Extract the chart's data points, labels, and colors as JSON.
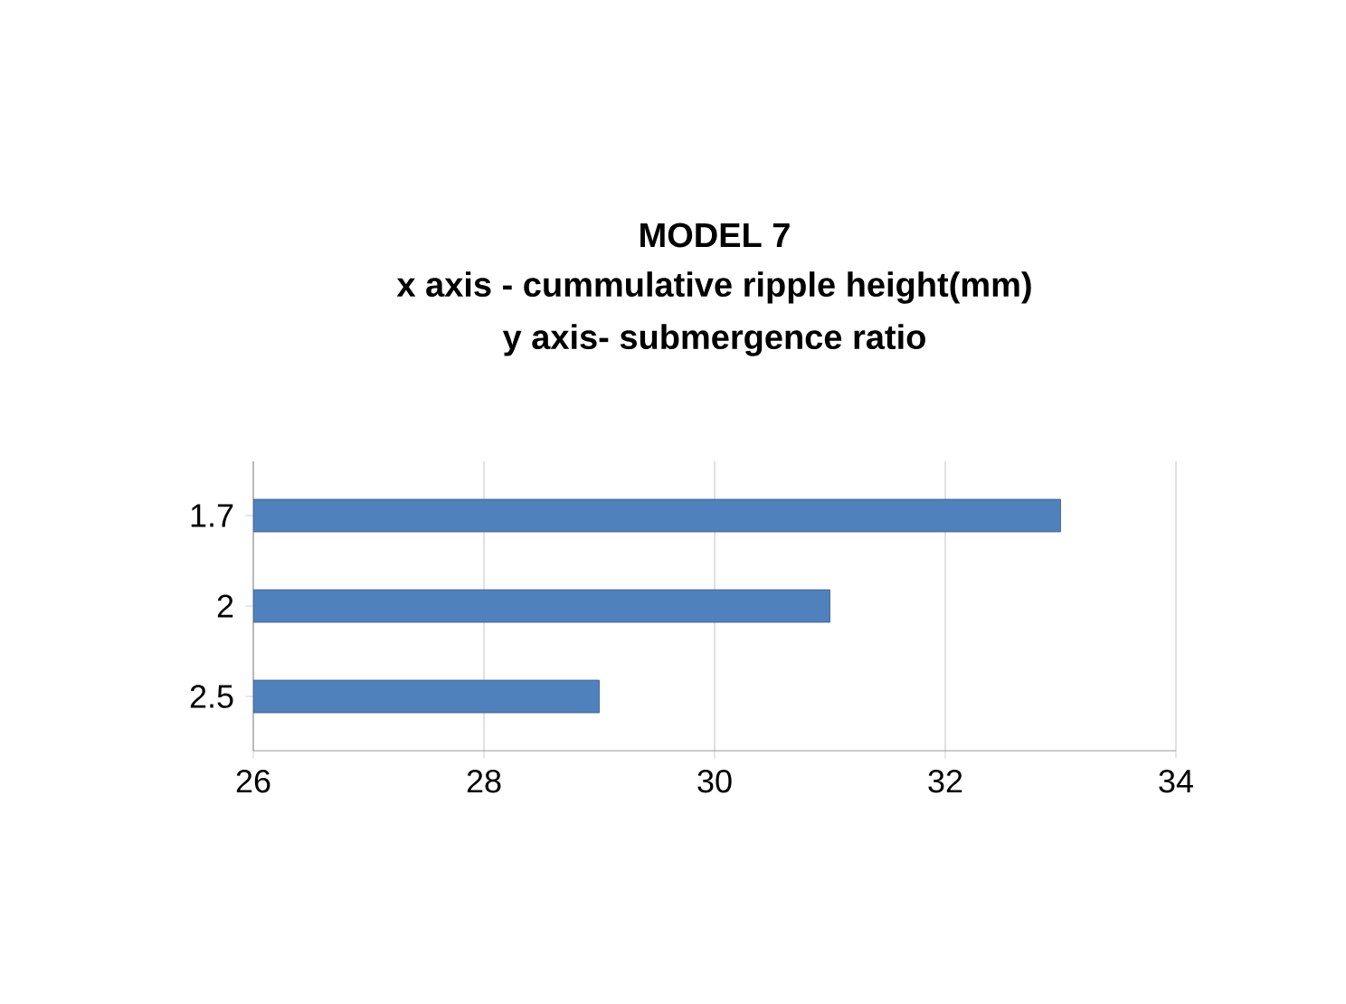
{
  "chart_data": {
    "type": "bar",
    "orientation": "horizontal",
    "title": "MODEL 7",
    "subtitle": "x axis - cummulative ripple height(mm)",
    "annotations": [
      "y axis- submergence ratio"
    ],
    "categories": [
      "1.7",
      "2",
      "2.5"
    ],
    "values": [
      33,
      31,
      29
    ],
    "color": "#4f81bd",
    "xlim": [
      26,
      34
    ],
    "xticks": [
      26,
      28,
      30,
      32,
      34
    ],
    "grid": "x"
  }
}
